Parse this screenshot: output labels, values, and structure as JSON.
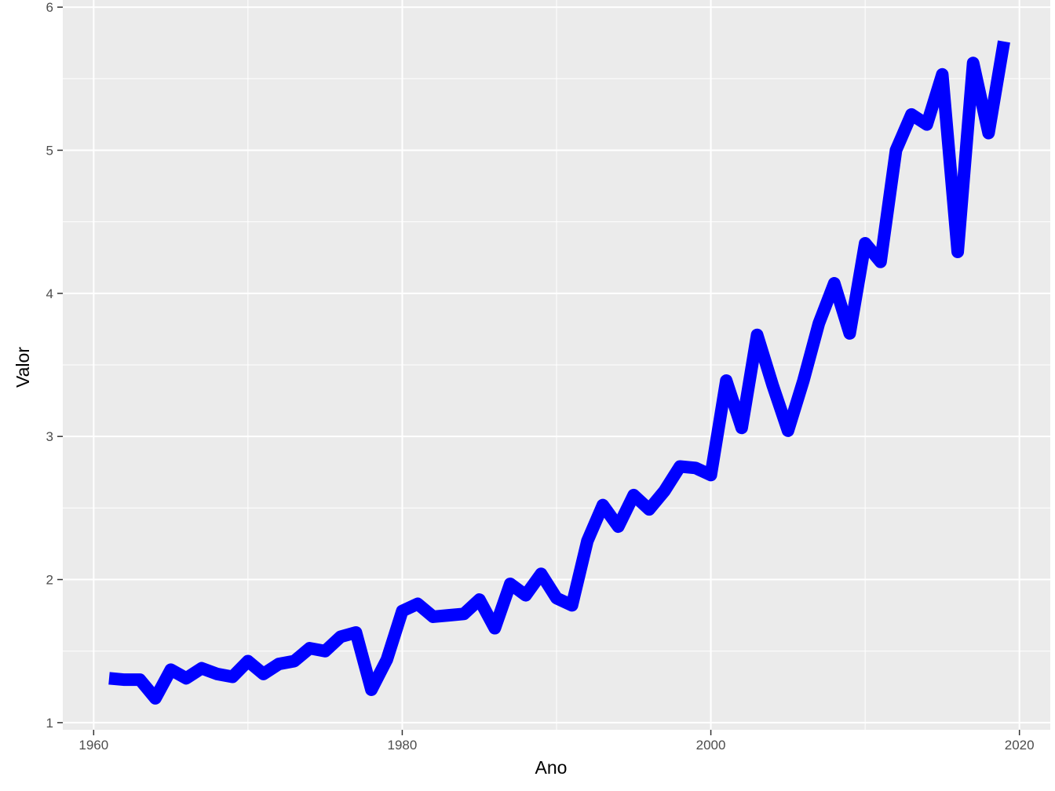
{
  "chart_data": {
    "type": "line",
    "title": "",
    "xlabel": "Ano",
    "ylabel": "Valor",
    "xlim": [
      1958,
      2022
    ],
    "ylim": [
      0.95,
      6.05
    ],
    "x_ticks": [
      1960,
      1980,
      2000,
      2020
    ],
    "y_ticks": [
      1,
      2,
      3,
      4,
      5,
      6
    ],
    "grid": true,
    "legend": "none",
    "colors": {
      "panel_background": "#ebebeb",
      "grid": "#ffffff",
      "line": "#0000ff",
      "tick_text": "#4d4d4d",
      "axis_title": "#000000"
    },
    "series": [
      {
        "x": [
          1961,
          1962,
          1963,
          1964,
          1965,
          1966,
          1967,
          1968,
          1969,
          1970,
          1971,
          1972,
          1973,
          1974,
          1975,
          1976,
          1977,
          1978,
          1979,
          1980,
          1981,
          1982,
          1983,
          1984,
          1985,
          1986,
          1987,
          1988,
          1989,
          1990,
          1991,
          1992,
          1993,
          1994,
          1995,
          1996,
          1997,
          1998,
          1999,
          2000,
          2001,
          2002,
          2003,
          2004,
          2005,
          2006,
          2007,
          2008,
          2009,
          2010,
          2011,
          2012,
          2013,
          2014,
          2015,
          2016,
          2017,
          2018,
          2019
        ],
        "values": [
          1.31,
          1.3,
          1.3,
          1.17,
          1.37,
          1.31,
          1.38,
          1.34,
          1.32,
          1.43,
          1.34,
          1.41,
          1.43,
          1.52,
          1.5,
          1.6,
          1.63,
          1.23,
          1.44,
          1.78,
          1.83,
          1.74,
          1.75,
          1.76,
          1.86,
          1.66,
          1.97,
          1.89,
          2.04,
          1.87,
          1.82,
          2.27,
          2.52,
          2.37,
          2.59,
          2.49,
          2.62,
          2.79,
          2.78,
          2.73,
          3.39,
          3.06,
          3.71,
          3.36,
          3.04,
          3.39,
          3.79,
          4.07,
          3.72,
          4.35,
          4.22,
          5.0,
          5.25,
          5.18,
          5.53,
          4.29,
          5.61,
          5.12,
          5.76
        ]
      }
    ]
  }
}
